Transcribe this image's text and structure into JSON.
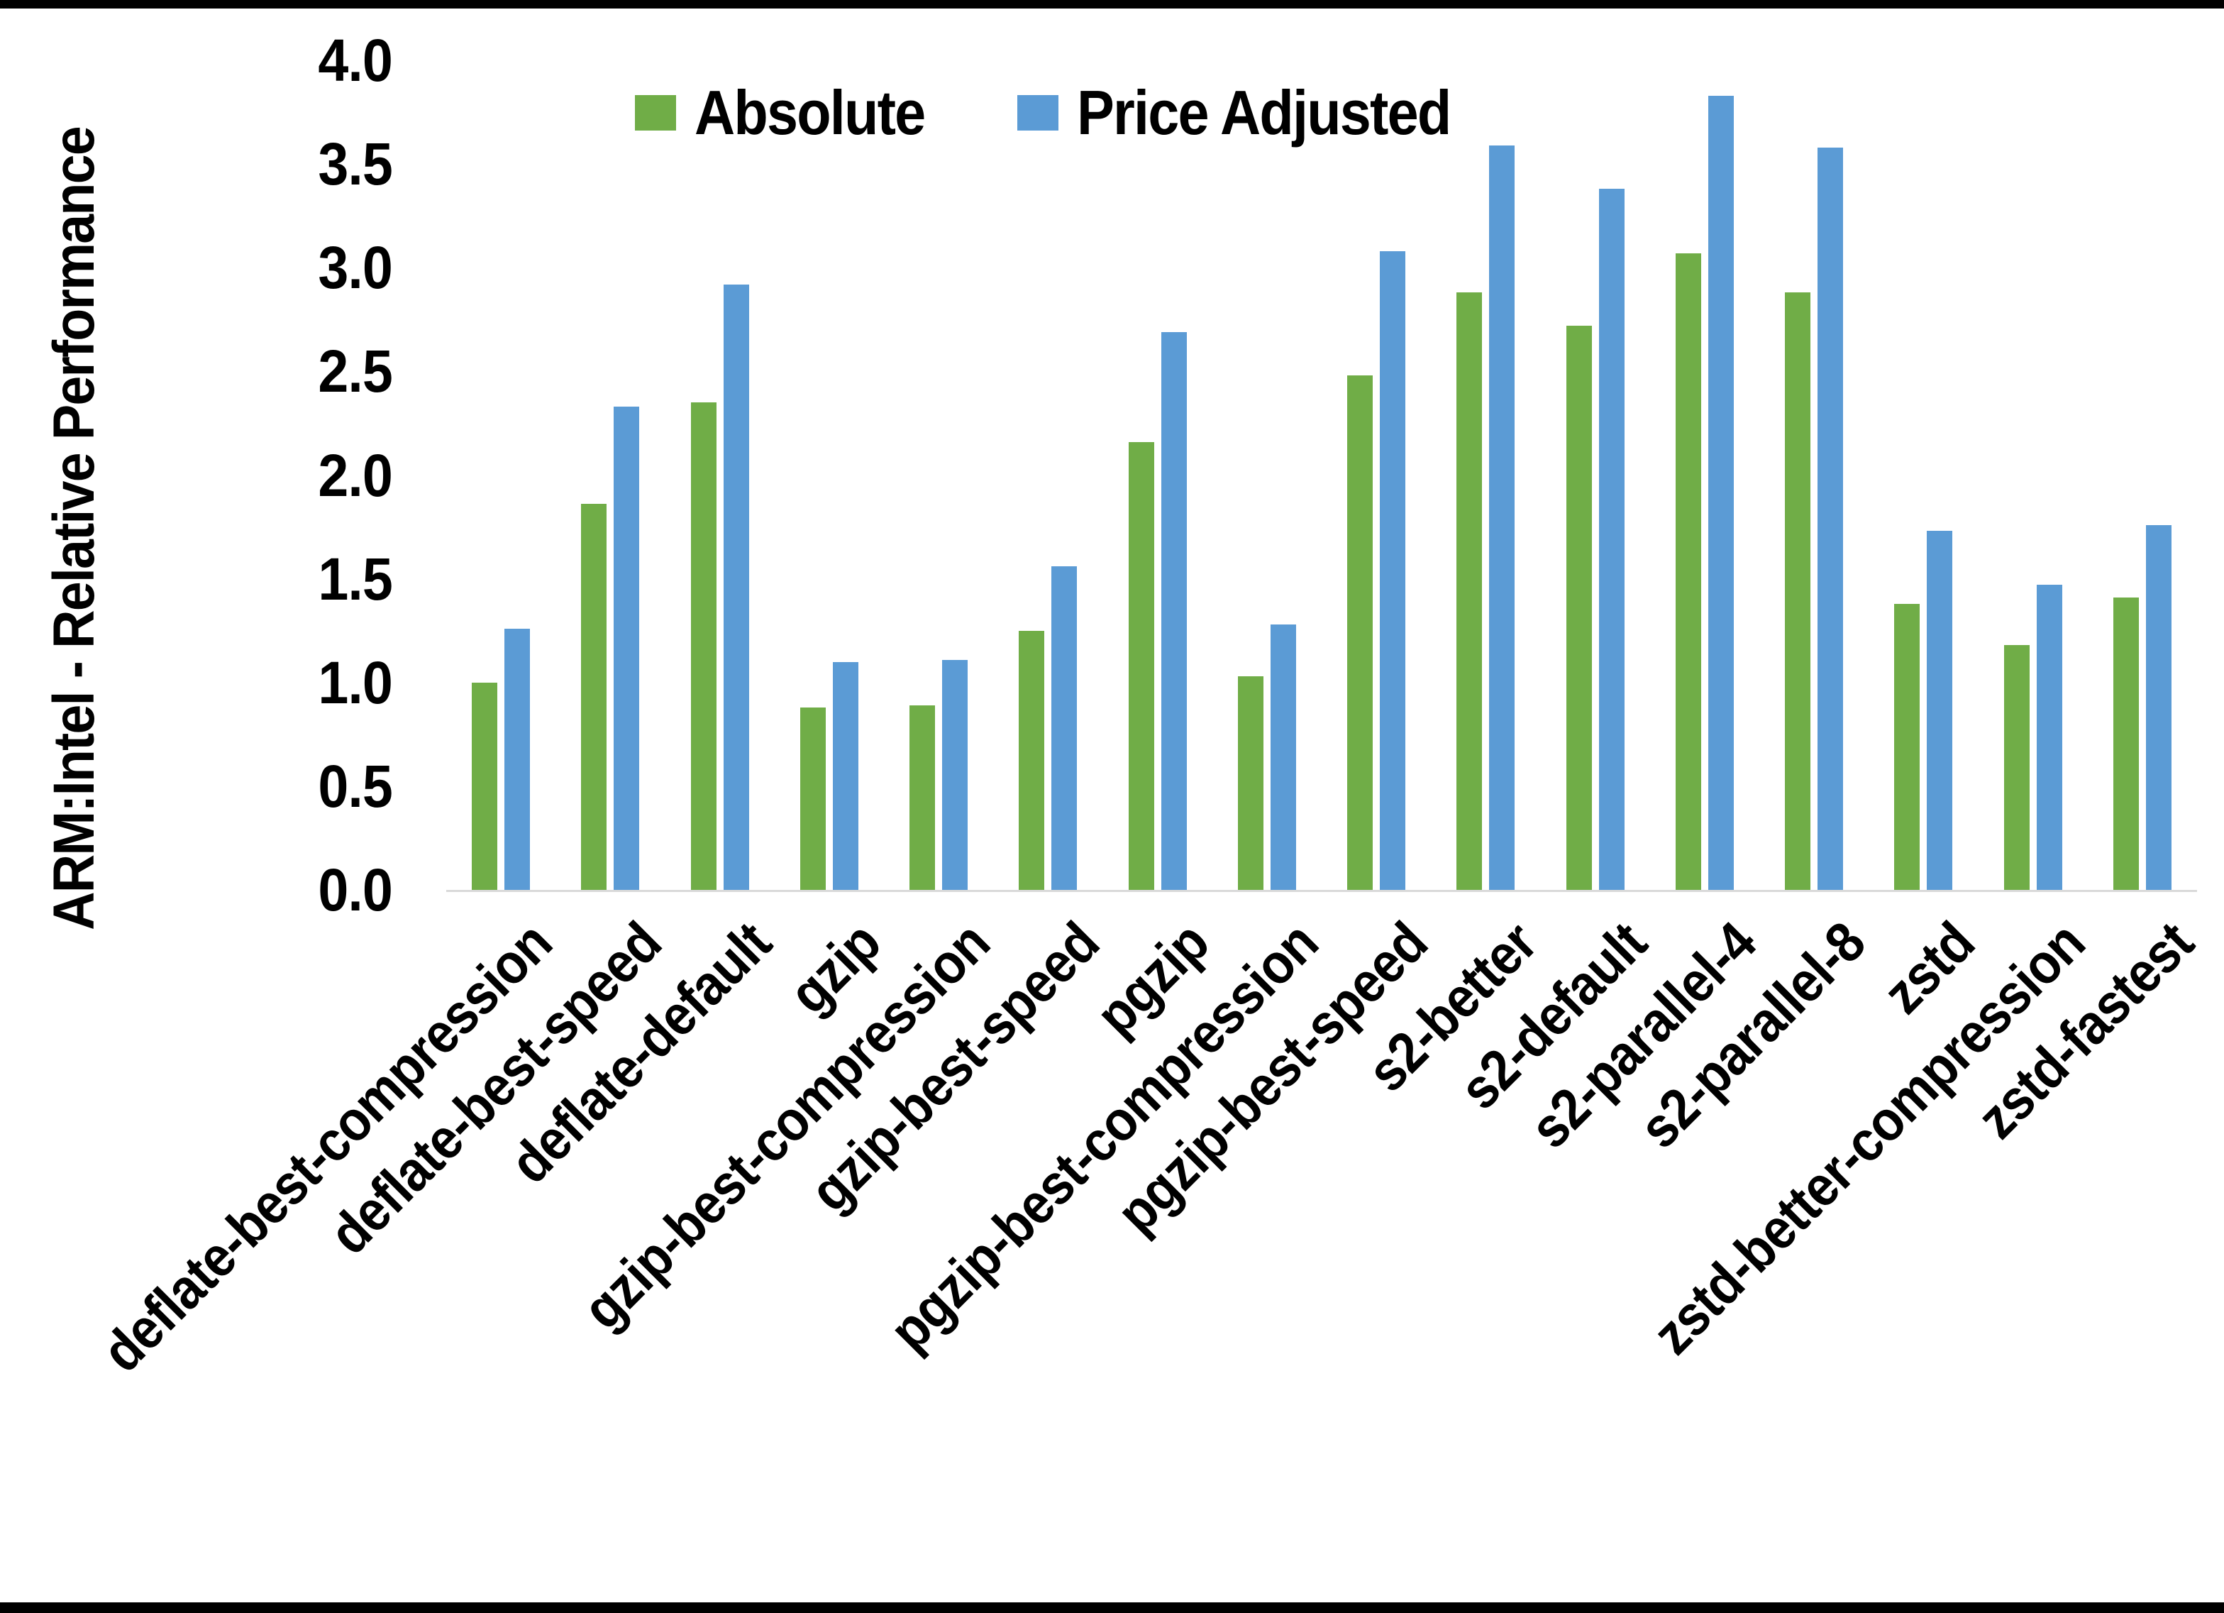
{
  "chart_data": {
    "type": "bar",
    "title": "",
    "ylabel": "ARM:Intel - Relative Performance",
    "xlabel": "",
    "ylim": [
      0.0,
      4.0
    ],
    "ytick_labels": [
      "0.0",
      "0.5",
      "1.0",
      "1.5",
      "2.0",
      "2.5",
      "3.0",
      "3.5",
      "4.0"
    ],
    "grid": false,
    "legend_position": "top-center",
    "baseline_color": "#D9D9D9",
    "categories": [
      "deflate-best-compression",
      "deflate-best-speed",
      "deflate-default",
      "gzip",
      "gzip-best-compression",
      "gzip-best-speed",
      "pgzip",
      "pgzip-best-compression",
      "pgzip-best-speed",
      "s2-better",
      "s2-default",
      "s2-parallel-4",
      "s2-parallel-8",
      "zstd",
      "zstd-better-compression",
      "zstd-fastest"
    ],
    "series": [
      {
        "name": "Absolute",
        "color": "#70AD47",
        "values": [
          1.0,
          1.86,
          2.35,
          0.88,
          0.89,
          1.25,
          2.16,
          1.03,
          2.48,
          2.88,
          2.72,
          3.07,
          2.88,
          1.38,
          1.18,
          1.41
        ]
      },
      {
        "name": "Price Adjusted",
        "color": "#5B9BD5",
        "values": [
          1.26,
          2.33,
          2.92,
          1.1,
          1.11,
          1.56,
          2.69,
          1.28,
          3.08,
          3.59,
          3.38,
          3.83,
          3.58,
          1.73,
          1.47,
          1.76
        ]
      }
    ]
  }
}
